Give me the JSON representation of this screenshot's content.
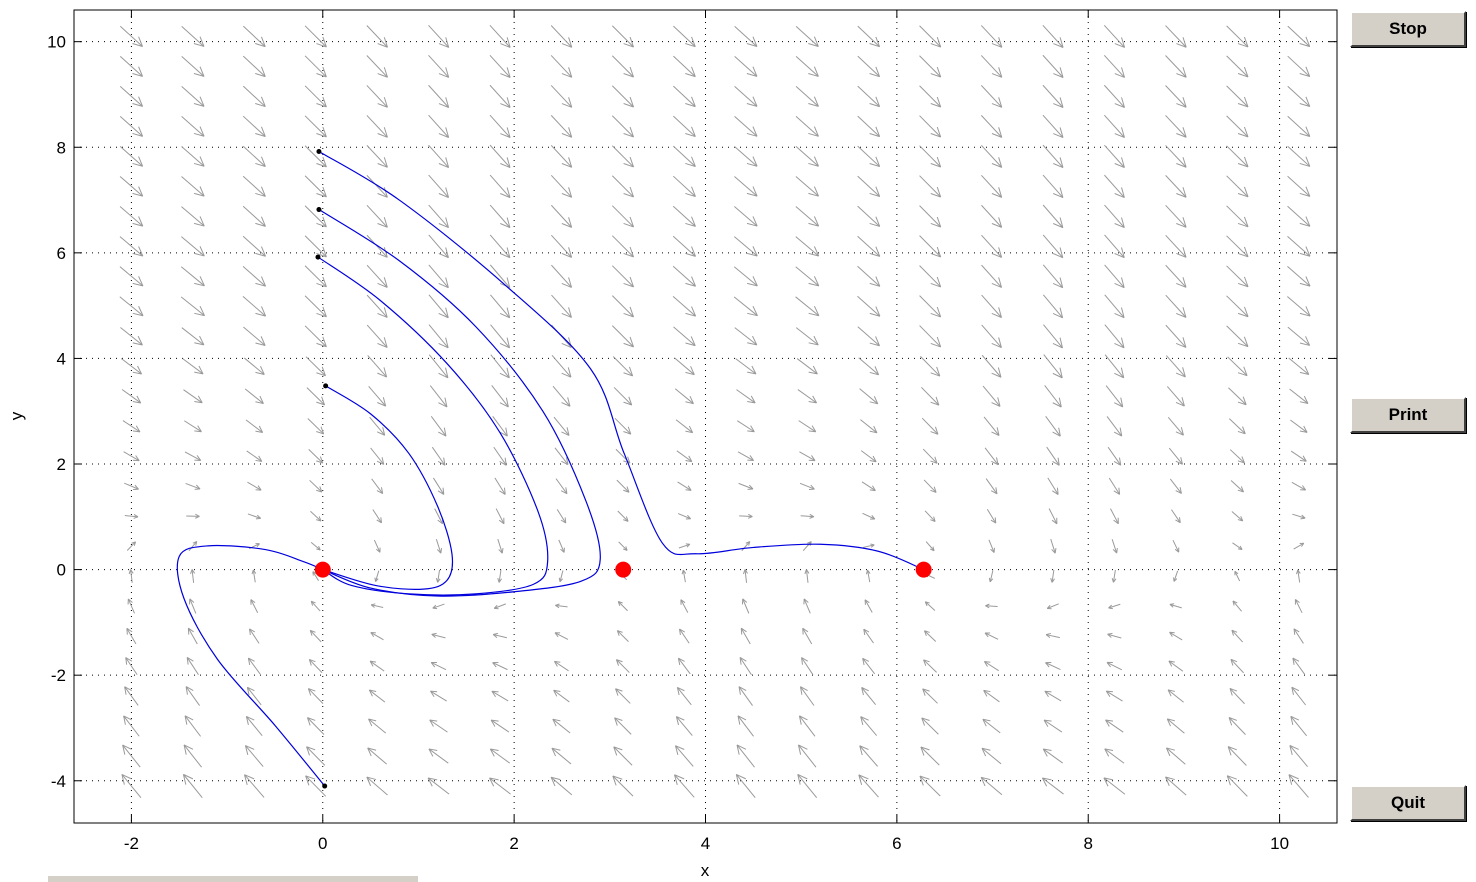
{
  "buttons": {
    "stop": "Stop",
    "print": "Print",
    "quit": "Quit"
  },
  "chart_data": {
    "type": "direction_field",
    "xlabel": "x",
    "ylabel": "y",
    "xlim": [
      -2.6,
      10.6
    ],
    "ylim": [
      -4.8,
      10.6
    ],
    "xticks": [
      -2,
      0,
      2,
      4,
      6,
      8,
      10
    ],
    "yticks": [
      -4,
      -2,
      0,
      2,
      4,
      6,
      8,
      10
    ],
    "grid": "dotted",
    "field_color": "#9a9a9a",
    "trajectory_color": "#0000dd",
    "equilibrium_color": "#ff0000",
    "equilibria": [
      [
        0,
        0
      ],
      [
        3.14,
        0
      ],
      [
        6.28,
        0
      ]
    ],
    "trajectories": [
      {
        "points": [
          [
            0.03,
            3.48
          ],
          [
            0.5,
            2.95
          ],
          [
            0.9,
            2.2
          ],
          [
            1.2,
            1.2
          ],
          [
            1.35,
            0.3
          ],
          [
            1.3,
            -0.2
          ],
          [
            1.05,
            -0.37
          ],
          [
            0.55,
            -0.3
          ],
          [
            0,
            0
          ]
        ]
      },
      {
        "points": [
          [
            -0.05,
            5.92
          ],
          [
            0.6,
            5.1
          ],
          [
            1.3,
            3.9
          ],
          [
            1.85,
            2.6
          ],
          [
            2.25,
            1.1
          ],
          [
            2.35,
            0.15
          ],
          [
            2.2,
            -0.28
          ],
          [
            1.6,
            -0.46
          ],
          [
            0.9,
            -0.46
          ],
          [
            0.3,
            -0.3
          ],
          [
            0,
            0
          ]
        ]
      },
      {
        "points": [
          [
            -0.04,
            6.82
          ],
          [
            0.8,
            5.85
          ],
          [
            1.6,
            4.6
          ],
          [
            2.3,
            3.0
          ],
          [
            2.75,
            1.3
          ],
          [
            2.9,
            0.2
          ],
          [
            2.7,
            -0.22
          ],
          [
            2.0,
            -0.42
          ],
          [
            1.2,
            -0.5
          ],
          [
            0.5,
            -0.35
          ],
          [
            0,
            0
          ]
        ]
      },
      {
        "points": [
          [
            -0.04,
            7.92
          ],
          [
            0.8,
            7.0
          ],
          [
            1.9,
            5.4
          ],
          [
            2.8,
            3.8
          ],
          [
            3.15,
            2.2
          ],
          [
            3.55,
            0.5
          ],
          [
            3.9,
            0.3
          ],
          [
            4.5,
            0.42
          ],
          [
            5.2,
            0.48
          ],
          [
            5.8,
            0.35
          ],
          [
            6.28,
            0
          ]
        ]
      },
      {
        "points": [
          [
            0.02,
            -4.1
          ],
          [
            -0.5,
            -2.95
          ],
          [
            -1.1,
            -1.7
          ],
          [
            -1.45,
            -0.55
          ],
          [
            -1.5,
            0.25
          ],
          [
            -1.2,
            0.45
          ],
          [
            -0.6,
            0.38
          ],
          [
            -0.2,
            0.15
          ],
          [
            0,
            0
          ]
        ]
      }
    ]
  }
}
